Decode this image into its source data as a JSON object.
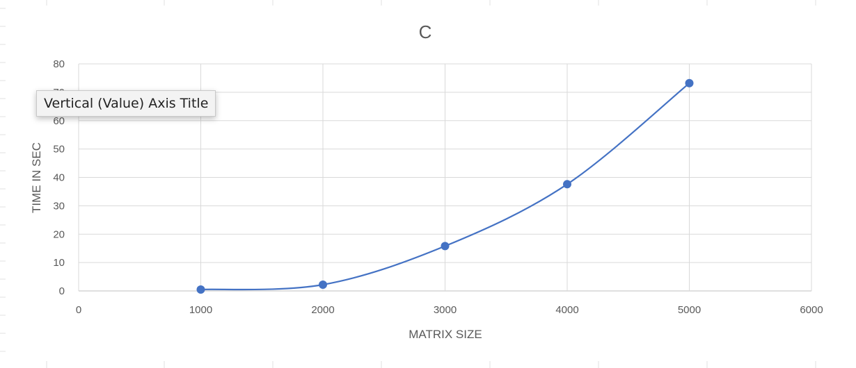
{
  "chart_data": {
    "type": "scatter",
    "title": "C",
    "xlabel": "MATRIX SIZE",
    "ylabel": "TIME IN SEC",
    "xlim": [
      0,
      6000
    ],
    "ylim": [
      0,
      80
    ],
    "x_ticks": [
      0,
      1000,
      2000,
      3000,
      4000,
      5000,
      6000
    ],
    "y_ticks": [
      0,
      10,
      20,
      30,
      40,
      50,
      60,
      70,
      80
    ],
    "grid": true,
    "smooth_line": true,
    "series": [
      {
        "x": [
          1000,
          2000,
          3000,
          4000,
          5000
        ],
        "y": [
          0.5,
          2.2,
          15.8,
          37.6,
          73.2
        ],
        "color": "#4472c4"
      }
    ]
  },
  "tooltip": {
    "text": "Vertical (Value) Axis Title"
  }
}
